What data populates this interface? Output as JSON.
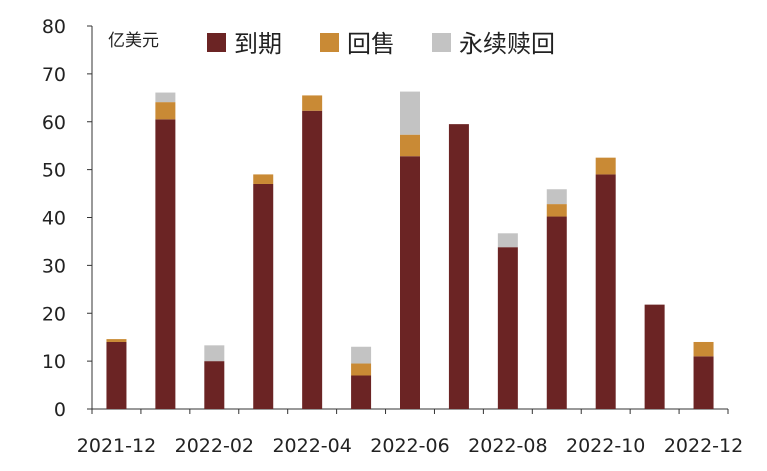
{
  "chart_data": {
    "type": "bar",
    "stacked": true,
    "unit_label": "亿美元",
    "categories": [
      "2021-12",
      "2022-01",
      "2022-02",
      "2022-03",
      "2022-04",
      "2022-05",
      "2022-06",
      "2022-07",
      "2022-08",
      "2022-09",
      "2022-10",
      "2022-11",
      "2022-12"
    ],
    "x_tick_labels": [
      "2021-12",
      "2022-02",
      "2022-04",
      "2022-06",
      "2022-08",
      "2022-10",
      "2022-12"
    ],
    "series": [
      {
        "name": "到期",
        "color": "#6b2424",
        "values": [
          14.0,
          60.5,
          10.0,
          47.0,
          62.3,
          7.0,
          52.8,
          59.5,
          33.8,
          40.2,
          49.0,
          21.8,
          11.0
        ]
      },
      {
        "name": "回售",
        "color": "#c98a35",
        "values": [
          0.6,
          3.6,
          0,
          2.0,
          3.2,
          2.5,
          4.5,
          0,
          0,
          2.6,
          3.5,
          0,
          3.0
        ]
      },
      {
        "name": "永续赎回",
        "color": "#c3c3c3",
        "values": [
          0,
          2.0,
          3.3,
          0,
          0,
          3.5,
          9.0,
          0,
          2.9,
          3.1,
          0,
          0,
          0
        ]
      }
    ],
    "ylim": [
      0,
      80
    ],
    "yticks": [
      0,
      10,
      20,
      30,
      40,
      50,
      60,
      70,
      80
    ],
    "grid": false,
    "legend_position": "top"
  }
}
